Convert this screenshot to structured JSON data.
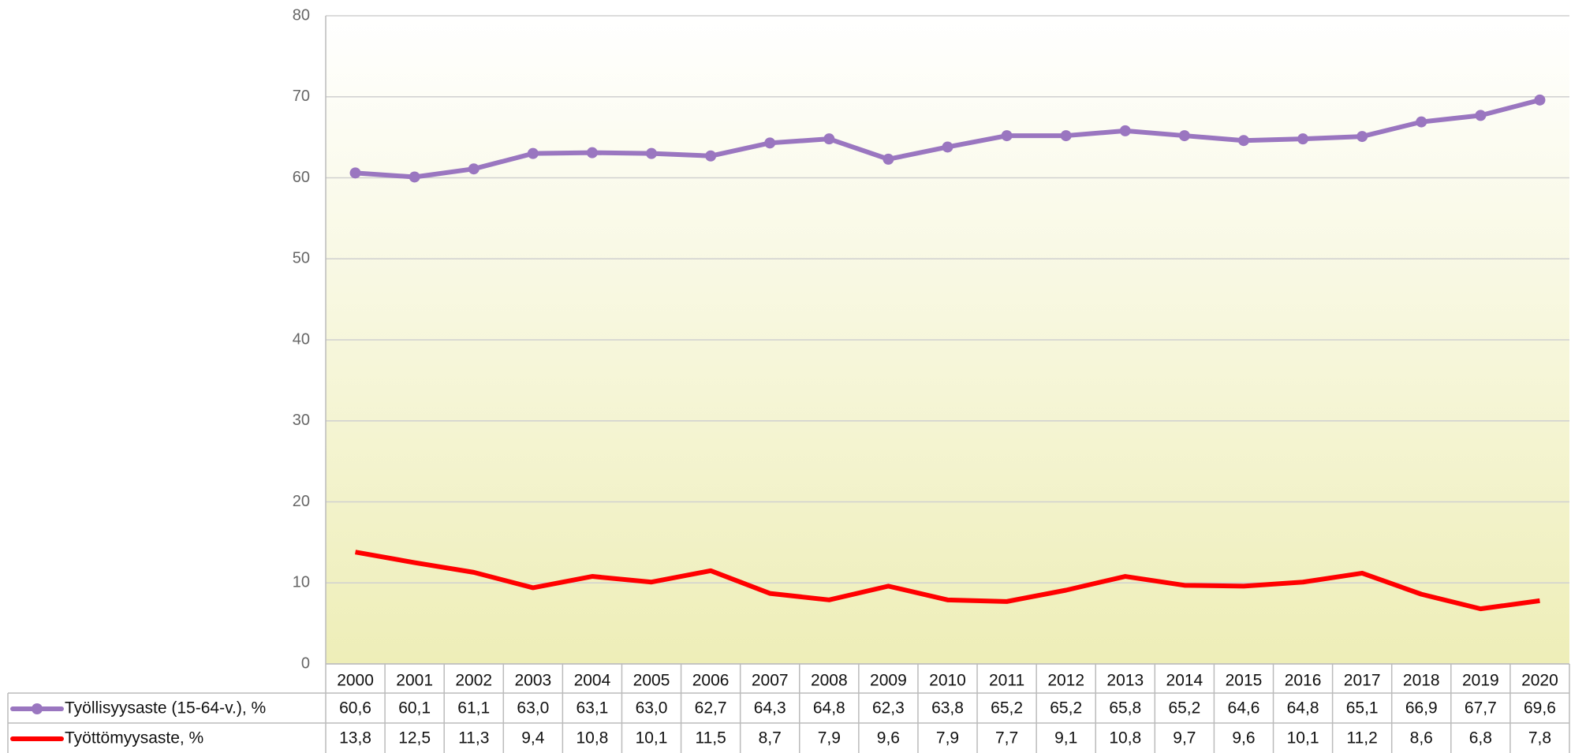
{
  "chart_data": {
    "type": "line",
    "categories": [
      "2000",
      "2001",
      "2002",
      "2003",
      "2004",
      "2005",
      "2006",
      "2007",
      "2008",
      "2009",
      "2010",
      "2011",
      "2012",
      "2013",
      "2014",
      "2015",
      "2016",
      "2017",
      "2018",
      "2019",
      "2020"
    ],
    "series": [
      {
        "name": "Työllisyysaste (15-64-v.), %",
        "color": "#9a76c0",
        "markers": true,
        "values": [
          60.6,
          60.1,
          61.1,
          63.0,
          63.1,
          63.0,
          62.7,
          64.3,
          64.8,
          62.3,
          63.8,
          65.2,
          65.2,
          65.8,
          65.2,
          64.6,
          64.8,
          65.1,
          66.9,
          67.7,
          69.6
        ],
        "value_labels": [
          "60,6",
          "60,1",
          "61,1",
          "63,0",
          "63,1",
          "63,0",
          "62,7",
          "64,3",
          "64,8",
          "62,3",
          "63,8",
          "65,2",
          "65,2",
          "65,8",
          "65,2",
          "64,6",
          "64,8",
          "65,1",
          "66,9",
          "67,7",
          "69,6"
        ]
      },
      {
        "name": "Työttömyysaste, %",
        "color": "#ff0000",
        "markers": false,
        "values": [
          13.8,
          12.5,
          11.3,
          9.4,
          10.8,
          10.1,
          11.5,
          8.7,
          7.9,
          9.6,
          7.9,
          7.7,
          9.1,
          10.8,
          9.7,
          9.6,
          10.1,
          11.2,
          8.6,
          6.8,
          7.8
        ],
        "value_labels": [
          "13,8",
          "12,5",
          "11,3",
          "9,4",
          "10,8",
          "10,1",
          "11,5",
          "8,7",
          "7,9",
          "9,6",
          "7,9",
          "7,7",
          "9,1",
          "10,8",
          "9,7",
          "9,6",
          "10,1",
          "11,2",
          "8,6",
          "6,8",
          "7,8"
        ]
      }
    ],
    "ylim": [
      0,
      80
    ],
    "yticks": [
      0,
      10,
      20,
      30,
      40,
      50,
      60,
      70,
      80
    ],
    "grid": true
  }
}
